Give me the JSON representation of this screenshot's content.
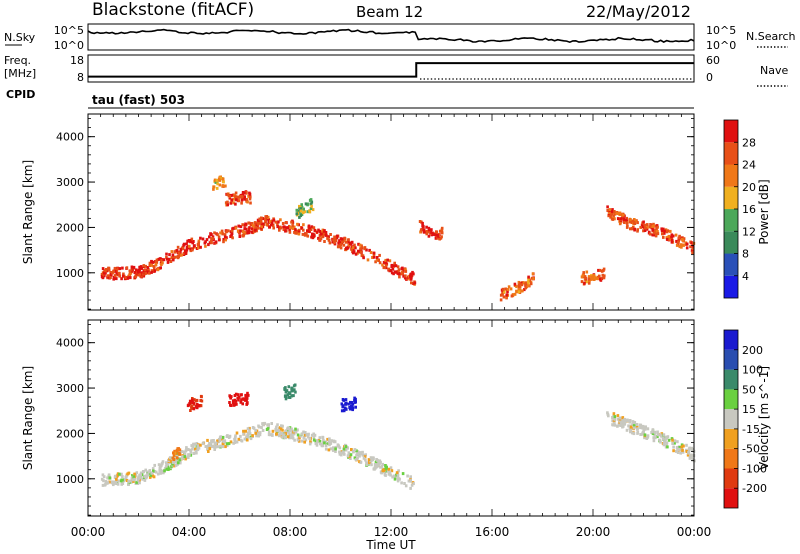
{
  "header": {
    "left": "Blackstone (fitACF)",
    "center": "Beam 12",
    "right": "22/May/2012"
  },
  "noise_panel": {
    "left_label": "N.Sky",
    "right_label": "N.Search",
    "y_ticks": [
      "10^5",
      "10^0"
    ],
    "right_ticks": [
      "10^5",
      "10^0"
    ]
  },
  "freq_panel": {
    "left_label_1": "Freq.",
    "left_label_2": "[MHz]",
    "right_label": "Nave",
    "left_ticks": [
      "18",
      "8"
    ],
    "right_ticks": [
      "60",
      "0"
    ],
    "freq_step_time": "13:00",
    "freq_before_mhz": 10,
    "freq_after_mhz": 15
  },
  "cpid": {
    "label": "CPID",
    "program": "tau (fast) 503"
  },
  "colors": {
    "power_scale": [
      "#1a1ae6",
      "#2a50b8",
      "#3a8a5a",
      "#4ca85a",
      "#f0b020",
      "#f07818",
      "#e85018",
      "#e01010"
    ],
    "velocity_scale": [
      "#e01010",
      "#e03a10",
      "#f07818",
      "#f0a020",
      "#c8c8c0",
      "#6ad040",
      "#3a8a6a",
      "#2a4eb0",
      "#1a1ad0"
    ]
  },
  "chart_data": [
    {
      "type": "heatmap",
      "title": "",
      "xlabel": "Time UT",
      "ylabel": "Slant Range [km]",
      "x_ticks": [
        "00:00",
        "04:00",
        "08:00",
        "12:00",
        "16:00",
        "20:00",
        "00:00"
      ],
      "x_range_hours": [
        0,
        24
      ],
      "y_ticks": [
        "1000",
        "2000",
        "3000",
        "4000"
      ],
      "ylim_km": [
        180,
        4500
      ],
      "colorbar": {
        "label": "Power [dB]",
        "ticks": [
          "4",
          "8",
          "12",
          "16",
          "20",
          "24",
          "28"
        ],
        "range": [
          0,
          32
        ]
      },
      "features": [
        {
          "name": "main echo band",
          "points": [
            [
              0.5,
              1000
            ],
            [
              2,
              1050
            ],
            [
              3,
              1300
            ],
            [
              4,
              1650
            ],
            [
              5,
              1800
            ],
            [
              6,
              1950
            ],
            [
              7,
              2150
            ],
            [
              8,
              2050
            ],
            [
              9,
              1900
            ],
            [
              10,
              1700
            ],
            [
              11,
              1450
            ],
            [
              12,
              1150
            ],
            [
              12.9,
              900
            ]
          ],
          "value": 28
        },
        {
          "name": "late band",
          "points": [
            [
              13.1,
              2050
            ],
            [
              13.6,
              1850
            ],
            [
              14,
              1900
            ]
          ],
          "value": 28
        },
        {
          "name": "evening band",
          "points": [
            [
              20.5,
              2400
            ],
            [
              21.5,
              2100
            ],
            [
              22.5,
              1950
            ],
            [
              23.5,
              1700
            ],
            [
              24,
              1550
            ]
          ],
          "value": 26
        },
        {
          "name": "patch 0620",
          "points": [
            [
              5.4,
              2650
            ],
            [
              6.4,
              2700
            ]
          ],
          "value": 28
        },
        {
          "name": "patch 0510",
          "points": [
            [
              4.9,
              3000
            ],
            [
              5.4,
              3050
            ]
          ],
          "value": 20
        },
        {
          "name": "patch 0830",
          "points": [
            [
              8.2,
              2350
            ],
            [
              8.9,
              2550
            ]
          ],
          "value": 14
        },
        {
          "name": "patch 1700",
          "points": [
            [
              16.3,
              550
            ],
            [
              17.0,
              700
            ],
            [
              17.6,
              900
            ]
          ],
          "value": 24
        },
        {
          "name": "patch 2000",
          "points": [
            [
              19.5,
              900
            ],
            [
              20.4,
              1000
            ]
          ],
          "value": 24
        }
      ]
    },
    {
      "type": "heatmap",
      "title": "",
      "xlabel": "Time UT",
      "ylabel": "Slant Range [km]",
      "x_ticks": [
        "00:00",
        "04:00",
        "08:00",
        "12:00",
        "16:00",
        "20:00",
        "00:00"
      ],
      "x_range_hours": [
        0,
        24
      ],
      "y_ticks": [
        "1000",
        "2000",
        "3000",
        "4000"
      ],
      "ylim_km": [
        180,
        4500
      ],
      "colorbar": {
        "label": "Velocity [m s^-1]",
        "ticks": [
          "-200",
          "-100",
          "-50",
          "-15",
          "15",
          "50",
          "100",
          "200"
        ],
        "range": [
          -250,
          250
        ]
      },
      "features": [
        {
          "name": "ground scatter band",
          "points": [
            [
              0.5,
              1000
            ],
            [
              2,
              1050
            ],
            [
              3,
              1300
            ],
            [
              4,
              1650
            ],
            [
              6,
              1950
            ],
            [
              7,
              2150
            ],
            [
              9,
              1900
            ],
            [
              11,
              1450
            ],
            [
              12.9,
              900
            ]
          ],
          "value": 0
        },
        {
          "name": "red patch 0420",
          "points": [
            [
              3.9,
              2650
            ],
            [
              4.5,
              2750
            ]
          ],
          "value": -200
        },
        {
          "name": "red patch 0600",
          "points": [
            [
              5.5,
              2750
            ],
            [
              6.3,
              2800
            ]
          ],
          "value": -220
        },
        {
          "name": "blue patch 1020",
          "points": [
            [
              10.0,
              2650
            ],
            [
              10.6,
              2700
            ]
          ],
          "value": 220
        },
        {
          "name": "blue-green patch 0800",
          "points": [
            [
              7.7,
              2900
            ],
            [
              8.2,
              3000
            ]
          ],
          "value": 80
        },
        {
          "name": "orange patch 0325",
          "points": [
            [
              3.3,
              1550
            ],
            [
              3.6,
              1650
            ]
          ],
          "value": -60
        },
        {
          "name": "evening gray band",
          "points": [
            [
              20.5,
              2400
            ],
            [
              22.5,
              1950
            ],
            [
              24,
              1550
            ]
          ],
          "value": 0
        }
      ]
    }
  ]
}
